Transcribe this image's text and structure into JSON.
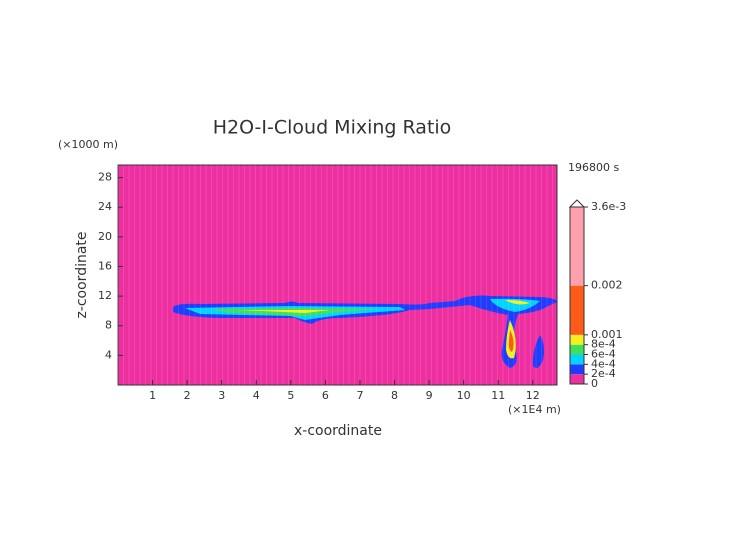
{
  "chart_data": {
    "type": "contour",
    "title": "H2O-I-Cloud Mixing Ratio",
    "x_label": "x-coordinate",
    "y_label": "z-coordinate",
    "x_unit": "(×1E4 m)",
    "y_unit": "(×1000 m)",
    "time_label": "196800 s",
    "xlim": [
      0,
      12.7
    ],
    "ylim": [
      0,
      29.7
    ],
    "xticks": [
      1,
      2,
      3,
      4,
      5,
      6,
      7,
      8,
      9,
      10,
      11,
      12
    ],
    "yticks": [
      4,
      8,
      12,
      16,
      20,
      24,
      28
    ],
    "colorbar": {
      "levels": [
        0,
        {
          "value": 0.0002,
          "label": "2e-4"
        },
        {
          "value": 0.0004,
          "label": "4e-4"
        },
        {
          "value": 0.0006,
          "label": "6e-4"
        },
        {
          "value": 0.0008,
          "label": "8e-4"
        },
        0.001,
        0.002,
        {
          "value": 0.0036,
          "label": "3.6e-3"
        }
      ],
      "colors": [
        "#ee2fa0",
        "#1f3cff",
        "#00d4ff",
        "#3ee05a",
        "#f4f020",
        "#ff5a18",
        "#ffa0ac"
      ]
    }
  }
}
